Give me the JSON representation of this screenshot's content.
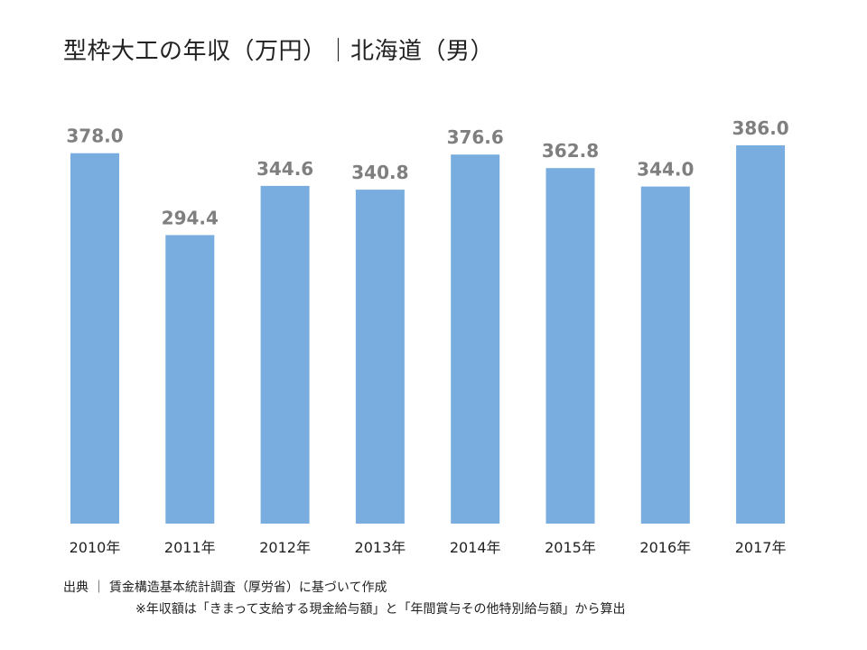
{
  "title": "型枠大工の年収（万円）｜北海道（男）",
  "source": "出典 ｜ 賃金構造基本統計調査（厚労省）に基づいて作成",
  "note": "※年収額は「きまって支給する現金給与額」と「年間賞与その他特別給与額」から算出",
  "chart_data": {
    "type": "bar",
    "title": "型枠大工の年収（万円）｜北海道（男）",
    "categories": [
      "2010年",
      "2011年",
      "2012年",
      "2013年",
      "2014年",
      "2015年",
      "2016年",
      "2017年"
    ],
    "values": [
      378.0,
      294.4,
      344.6,
      340.8,
      376.6,
      362.8,
      344.0,
      386.0
    ],
    "value_labels": [
      "378.0",
      "294.4",
      "344.6",
      "340.8",
      "376.6",
      "362.8",
      "344.0",
      "386.0"
    ],
    "xlabel": "",
    "ylabel": "",
    "ylim": [
      0,
      386
    ],
    "grid": false,
    "legend": "none",
    "bar_color": "#7aaddf",
    "label_color": "#7f7f7f"
  }
}
